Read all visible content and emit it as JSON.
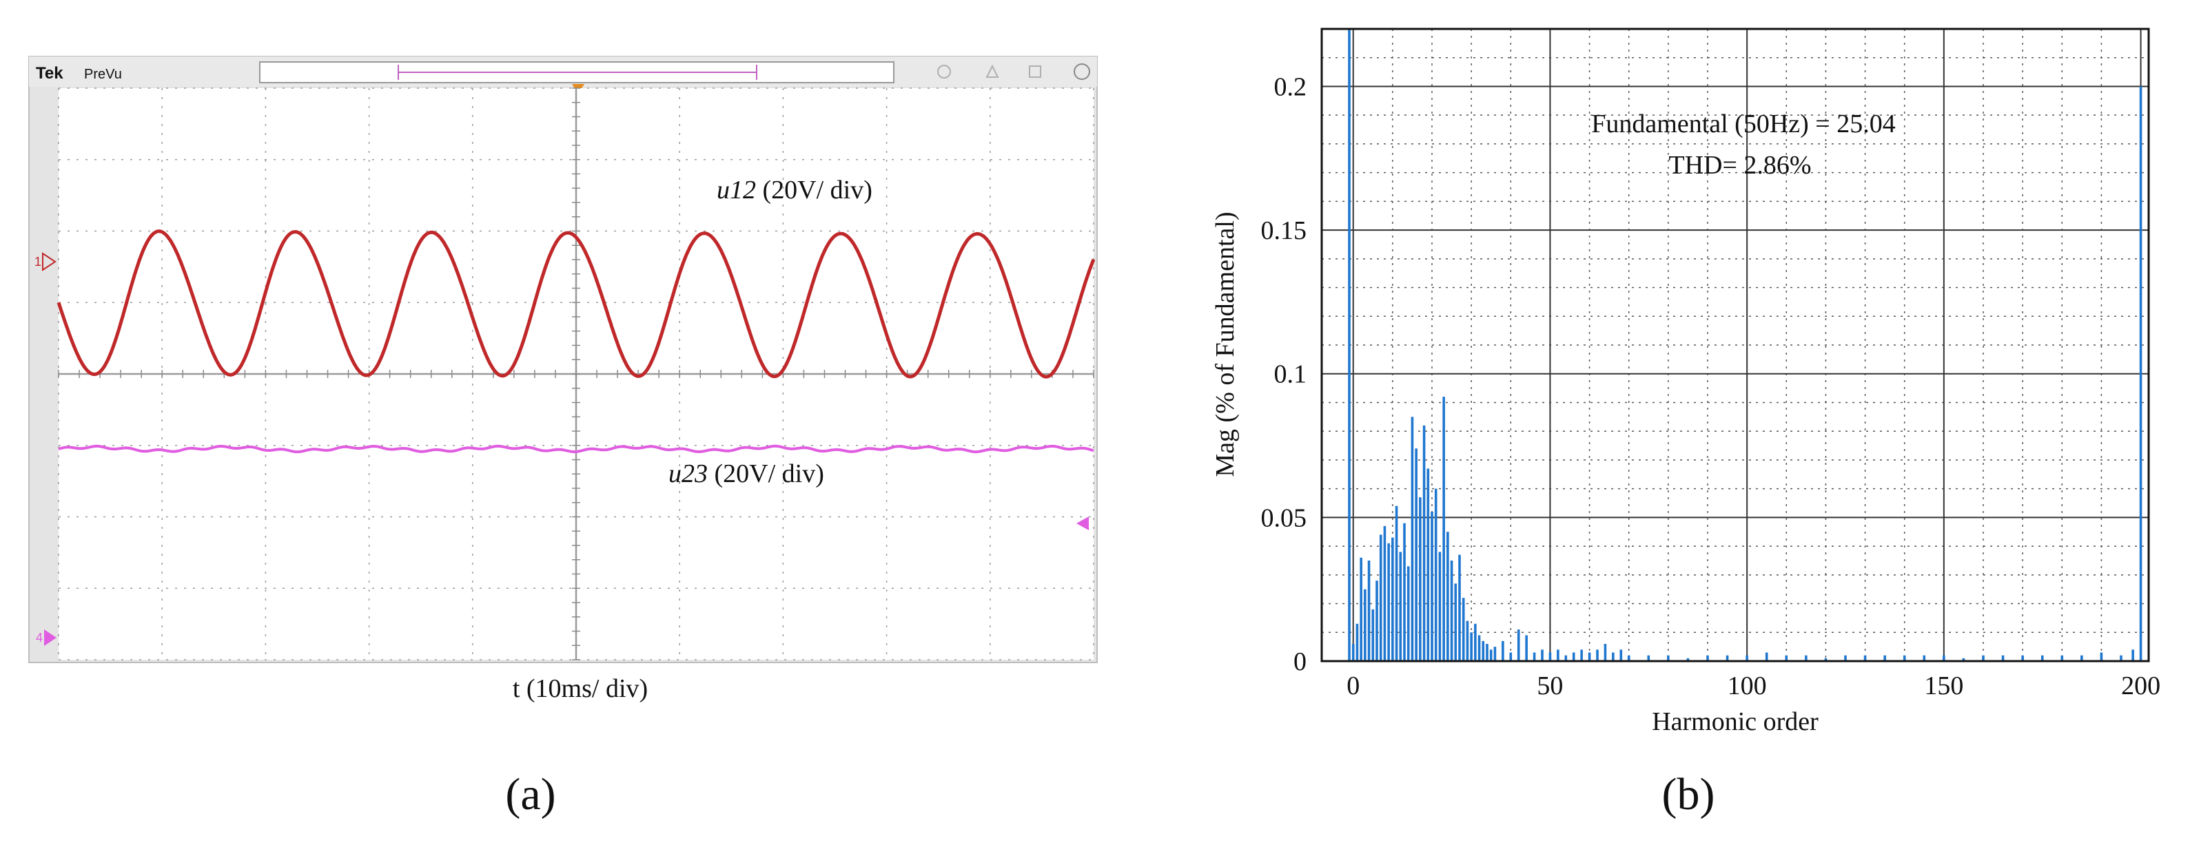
{
  "panel_labels": {
    "a": "(a)",
    "b": "(b)"
  },
  "scope": {
    "brand": "Tek",
    "mode": "PreVu",
    "trigger_marker": "T",
    "ch1_marker": "1",
    "ch2_marker": "4",
    "x_axis_label": "t (10ms/ div)",
    "trace1_name": "u12",
    "trace1_label_text": "(20V/ div)",
    "trace2_name": "u23",
    "trace2_label_text": "(20V/ div)",
    "colors": {
      "trace1": "#c0282a",
      "trace2": "#e05ce0",
      "trigger": "#e58a1c",
      "frame": "#cfcfcf",
      "grid": "#8a8a8a"
    }
  },
  "chart_data": [
    {
      "type": "line",
      "title": "",
      "xlabel": "t (10ms/ div)",
      "ylabel": "",
      "x_divisions": 10,
      "y_divisions": 8,
      "series": [
        {
          "name": "u12",
          "scale": "20V/ div",
          "waveform": "sine",
          "cycles": 7.6,
          "amplitude_div": 1.0,
          "offset_div": 1.0,
          "start_phase_deg": 180
        },
        {
          "name": "u23",
          "scale": "20V/ div",
          "waveform": "flat",
          "amplitude_div": 0.0,
          "offset_div": -1.05
        }
      ]
    },
    {
      "type": "bar",
      "title": "",
      "xlabel": "Harmonic order",
      "ylabel": "Mag (% of Fundamental)",
      "xlim": [
        -8,
        202
      ],
      "ylim": [
        0,
        0.22
      ],
      "xticks": [
        0,
        50,
        100,
        150,
        200
      ],
      "xtick_labels": [
        "0",
        "50",
        "100",
        "150",
        "200"
      ],
      "yticks": [
        0,
        0.05,
        0.1,
        0.15,
        0.2
      ],
      "ytick_labels": [
        "0",
        "0.05",
        "0.1",
        "0.15",
        "0.2"
      ],
      "annotation_line1": "Fundamental (50Hz) = 25.04",
      "annotation_line2": "THD= 2.86%",
      "bar_color": "#1f77d0",
      "x": [
        -1,
        0,
        1,
        2,
        3,
        4,
        5,
        6,
        7,
        8,
        9,
        10,
        11,
        12,
        13,
        14,
        15,
        16,
        17,
        18,
        19,
        20,
        21,
        22,
        23,
        24,
        25,
        26,
        27,
        28,
        29,
        30,
        31,
        32,
        33,
        34,
        35,
        36,
        38,
        40,
        42,
        44,
        46,
        48,
        50,
        52,
        54,
        56,
        58,
        60,
        62,
        64,
        66,
        68,
        70,
        75,
        80,
        85,
        90,
        95,
        100,
        105,
        110,
        115,
        120,
        125,
        130,
        135,
        140,
        145,
        150,
        155,
        160,
        165,
        170,
        175,
        180,
        185,
        190,
        195,
        198,
        200
      ],
      "values": [
        0.22,
        0.006,
        0.013,
        0.036,
        0.025,
        0.035,
        0.018,
        0.028,
        0.044,
        0.047,
        0.041,
        0.043,
        0.054,
        0.038,
        0.048,
        0.033,
        0.085,
        0.074,
        0.057,
        0.082,
        0.067,
        0.052,
        0.06,
        0.038,
        0.092,
        0.045,
        0.035,
        0.027,
        0.037,
        0.022,
        0.014,
        0.01,
        0.013,
        0.009,
        0.007,
        0.006,
        0.004,
        0.005,
        0.007,
        0.003,
        0.011,
        0.009,
        0.003,
        0.004,
        0.003,
        0.004,
        0.002,
        0.003,
        0.004,
        0.003,
        0.004,
        0.006,
        0.003,
        0.004,
        0.002,
        0.002,
        0.002,
        0.001,
        0.002,
        0.002,
        0.002,
        0.003,
        0.002,
        0.002,
        0.001,
        0.002,
        0.002,
        0.002,
        0.002,
        0.002,
        0.002,
        0.001,
        0.002,
        0.002,
        0.002,
        0.002,
        0.002,
        0.002,
        0.003,
        0.002,
        0.004,
        0.2
      ]
    }
  ]
}
